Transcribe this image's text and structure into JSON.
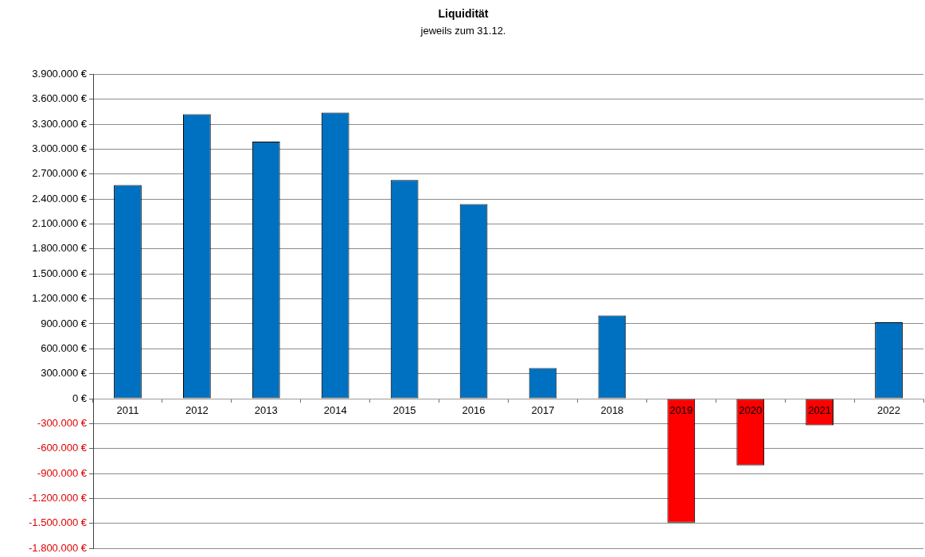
{
  "chart_data": {
    "type": "bar",
    "title": "Liquidität",
    "subtitle": "jeweils zum 31.12.",
    "categories": [
      "2011",
      "2012",
      "2013",
      "2014",
      "2015",
      "2016",
      "2017",
      "2018",
      "2019",
      "2020",
      "2021",
      "2022"
    ],
    "values": [
      2570000,
      3420000,
      3090000,
      3440000,
      2630000,
      2340000,
      370000,
      1000000,
      -1490000,
      -800000,
      -320000,
      920000
    ],
    "colors": [
      "#0070c0",
      "#0070c0",
      "#0070c0",
      "#0070c0",
      "#0070c0",
      "#0070c0",
      "#0070c0",
      "#0070c0",
      "#ff0000",
      "#ff0000",
      "#ff0000",
      "#0070c0"
    ],
    "ylim": [
      -1800000,
      3900000
    ],
    "yticks": [
      {
        "value": -1800000,
        "label": "-1.800.000 €"
      },
      {
        "value": -1500000,
        "label": "-1.500.000 €"
      },
      {
        "value": -1200000,
        "label": "-1.200.000 €"
      },
      {
        "value": -900000,
        "label": "-900.000 €"
      },
      {
        "value": -600000,
        "label": "-600.000 €"
      },
      {
        "value": -300000,
        "label": "-300.000 €"
      },
      {
        "value": 0,
        "label": "0 €"
      },
      {
        "value": 300000,
        "label": "300.000 €"
      },
      {
        "value": 600000,
        "label": "600.000 €"
      },
      {
        "value": 900000,
        "label": "900.000 €"
      },
      {
        "value": 1200000,
        "label": "1.200.000 €"
      },
      {
        "value": 1500000,
        "label": "1.500.000 €"
      },
      {
        "value": 1800000,
        "label": "1.800.000 €"
      },
      {
        "value": 2100000,
        "label": "2.100.000 €"
      },
      {
        "value": 2400000,
        "label": "2.400.000 €"
      },
      {
        "value": 2700000,
        "label": "2.700.000 €"
      },
      {
        "value": 3000000,
        "label": "3.000.000 €"
      },
      {
        "value": 3300000,
        "label": "3.300.000 €"
      },
      {
        "value": 3600000,
        "label": "3.600.000 €"
      },
      {
        "value": 3900000,
        "label": "3.900.000 €"
      }
    ],
    "grid": "y",
    "legend": false
  }
}
